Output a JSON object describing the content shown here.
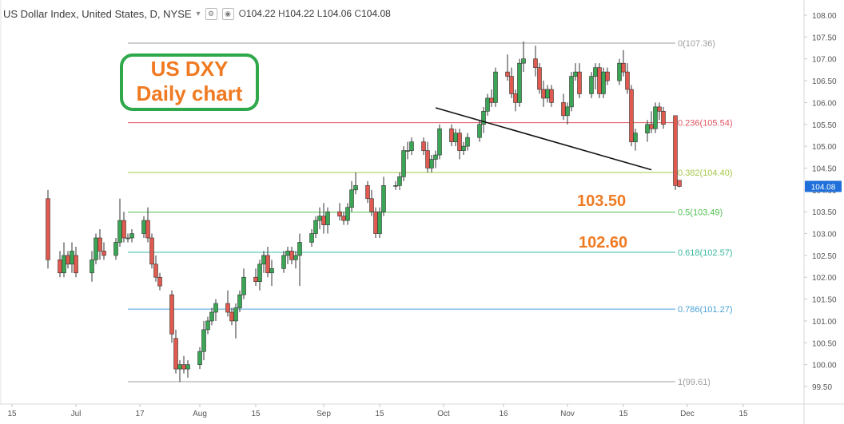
{
  "header": {
    "title": "US Dollar Index, United States, D, NYSE",
    "ohlc": {
      "o_label": "O",
      "o": "104.22",
      "h_label": "H",
      "h": "104.22",
      "l_label": "L",
      "l": "104.06",
      "c_label": "C",
      "c": "104.08"
    }
  },
  "annotation": {
    "line1": "US DXY",
    "line2": "Daily chart"
  },
  "targets": [
    "103.50",
    "102.60"
  ],
  "chart_data": {
    "type": "candlestick",
    "x_axis_labels": [
      "15",
      "Jul",
      "17",
      "Aug",
      "15",
      "Sep",
      "15",
      "Oct",
      "16",
      "Nov",
      "15",
      "Dec",
      "15"
    ],
    "y_ticks": [
      "108.00",
      "107.50",
      "107.00",
      "106.50",
      "106.00",
      "105.50",
      "105.00",
      "104.50",
      "104.00",
      "103.50",
      "103.00",
      "102.50",
      "102.00",
      "101.50",
      "101.00",
      "100.50",
      "100.00",
      "99.50"
    ],
    "ylim": [
      99.35,
      108.2
    ],
    "last_price": "104.08",
    "fibonacci": [
      {
        "label": "0(107.36)",
        "value": 107.36,
        "color": "#9e9e9e"
      },
      {
        "label": "0.236(105.54)",
        "value": 105.54,
        "color": "#e05561"
      },
      {
        "label": "0.382(104.40)",
        "value": 104.4,
        "color": "#a5c94a"
      },
      {
        "label": "0.5(103.49)",
        "value": 103.49,
        "color": "#4fbf4f"
      },
      {
        "label": "0.618(102.57)",
        "value": 102.57,
        "color": "#3bb8a0"
      },
      {
        "label": "0.786(101.27)",
        "value": 101.27,
        "color": "#4ba3d6"
      },
      {
        "label": "1(99.61)",
        "value": 99.61,
        "color": "#9e9e9e"
      }
    ],
    "trendline": {
      "from_date": "2016-09-29",
      "from_value": 105.88,
      "to_date": "2016-11-22",
      "to_value": 104.46
    },
    "candles": [
      {
        "date": "2016-06-24",
        "o": 103.8,
        "h": 104.0,
        "l": 102.2,
        "c": 102.4
      },
      {
        "date": "2016-06-27",
        "o": 102.4,
        "h": 102.6,
        "l": 102.0,
        "c": 102.1
      },
      {
        "date": "2016-06-28",
        "o": 102.1,
        "h": 102.8,
        "l": 102.0,
        "c": 102.5
      },
      {
        "date": "2016-06-29",
        "o": 102.5,
        "h": 102.6,
        "l": 102.2,
        "c": 102.3
      },
      {
        "date": "2016-06-30",
        "o": 102.3,
        "h": 102.8,
        "l": 102.1,
        "c": 102.6
      },
      {
        "date": "2016-07-01",
        "o": 102.5,
        "h": 102.7,
        "l": 102.0,
        "c": 102.1
      },
      {
        "date": "2016-07-05",
        "o": 102.1,
        "h": 102.6,
        "l": 101.9,
        "c": 102.4
      },
      {
        "date": "2016-07-06",
        "o": 102.4,
        "h": 103.0,
        "l": 102.3,
        "c": 102.9
      },
      {
        "date": "2016-07-07",
        "o": 102.9,
        "h": 103.1,
        "l": 102.4,
        "c": 102.6
      },
      {
        "date": "2016-07-08",
        "o": 102.6,
        "h": 102.8,
        "l": 102.4,
        "c": 102.5
      },
      {
        "date": "2016-07-11",
        "o": 102.5,
        "h": 102.9,
        "l": 102.4,
        "c": 102.8
      },
      {
        "date": "2016-07-12",
        "o": 102.8,
        "h": 103.8,
        "l": 102.7,
        "c": 103.3
      },
      {
        "date": "2016-07-13",
        "o": 103.3,
        "h": 103.5,
        "l": 102.8,
        "c": 102.9
      },
      {
        "date": "2016-07-14",
        "o": 102.9,
        "h": 103.0,
        "l": 102.8,
        "c": 102.9
      },
      {
        "date": "2016-07-15",
        "o": 102.9,
        "h": 103.1,
        "l": 102.8,
        "c": 103.0
      },
      {
        "date": "2016-07-18",
        "o": 103.0,
        "h": 103.4,
        "l": 102.9,
        "c": 103.3
      },
      {
        "date": "2016-07-19",
        "o": 103.3,
        "h": 103.6,
        "l": 102.8,
        "c": 102.9
      },
      {
        "date": "2016-07-20",
        "o": 102.9,
        "h": 103.0,
        "l": 102.2,
        "c": 102.3
      },
      {
        "date": "2016-07-21",
        "o": 102.3,
        "h": 102.5,
        "l": 101.9,
        "c": 102.0
      },
      {
        "date": "2016-07-22",
        "o": 102.0,
        "h": 102.1,
        "l": 101.7,
        "c": 101.8
      },
      {
        "date": "2016-07-25",
        "o": 101.6,
        "h": 101.7,
        "l": 100.5,
        "c": 100.7
      },
      {
        "date": "2016-07-26",
        "o": 100.6,
        "h": 100.8,
        "l": 99.8,
        "c": 99.9
      },
      {
        "date": "2016-07-27",
        "o": 99.9,
        "h": 100.1,
        "l": 99.6,
        "c": 100.0
      },
      {
        "date": "2016-07-28",
        "o": 100.0,
        "h": 100.2,
        "l": 99.8,
        "c": 99.9
      },
      {
        "date": "2016-07-29",
        "o": 99.9,
        "h": 100.1,
        "l": 99.7,
        "c": 100.0
      },
      {
        "date": "2016-08-01",
        "o": 100.0,
        "h": 100.4,
        "l": 99.9,
        "c": 100.3
      },
      {
        "date": "2016-08-02",
        "o": 100.3,
        "h": 101.0,
        "l": 100.1,
        "c": 100.8
      },
      {
        "date": "2016-08-03",
        "o": 100.8,
        "h": 101.1,
        "l": 100.7,
        "c": 101.0
      },
      {
        "date": "2016-08-04",
        "o": 101.0,
        "h": 101.3,
        "l": 100.9,
        "c": 101.2
      },
      {
        "date": "2016-08-05",
        "o": 101.2,
        "h": 101.5,
        "l": 101.0,
        "c": 101.4
      },
      {
        "date": "2016-08-08",
        "o": 101.4,
        "h": 101.7,
        "l": 101.1,
        "c": 101.2
      },
      {
        "date": "2016-08-09",
        "o": 101.2,
        "h": 101.3,
        "l": 100.9,
        "c": 101.0
      },
      {
        "date": "2016-08-10",
        "o": 101.0,
        "h": 101.4,
        "l": 100.6,
        "c": 101.3
      },
      {
        "date": "2016-08-11",
        "o": 101.3,
        "h": 101.7,
        "l": 101.2,
        "c": 101.6
      },
      {
        "date": "2016-08-12",
        "o": 101.6,
        "h": 102.2,
        "l": 101.5,
        "c": 102.0
      },
      {
        "date": "2016-08-15",
        "o": 102.0,
        "h": 102.2,
        "l": 101.8,
        "c": 101.9
      },
      {
        "date": "2016-08-16",
        "o": 101.9,
        "h": 102.4,
        "l": 101.7,
        "c": 102.3
      },
      {
        "date": "2016-08-17",
        "o": 102.3,
        "h": 102.6,
        "l": 102.1,
        "c": 102.5
      },
      {
        "date": "2016-08-18",
        "o": 102.5,
        "h": 102.7,
        "l": 102.0,
        "c": 102.1
      },
      {
        "date": "2016-08-19",
        "o": 102.1,
        "h": 102.4,
        "l": 101.8,
        "c": 102.2
      },
      {
        "date": "2016-08-22",
        "o": 102.2,
        "h": 102.6,
        "l": 102.1,
        "c": 102.5
      },
      {
        "date": "2016-08-23",
        "o": 102.5,
        "h": 102.7,
        "l": 102.3,
        "c": 102.6
      },
      {
        "date": "2016-08-24",
        "o": 102.6,
        "h": 102.7,
        "l": 102.3,
        "c": 102.4
      },
      {
        "date": "2016-08-25",
        "o": 102.4,
        "h": 102.6,
        "l": 102.2,
        "c": 102.5
      },
      {
        "date": "2016-08-26",
        "o": 102.5,
        "h": 103.0,
        "l": 101.8,
        "c": 102.8
      },
      {
        "date": "2016-08-29",
        "o": 102.8,
        "h": 103.1,
        "l": 102.7,
        "c": 103.0
      },
      {
        "date": "2016-08-30",
        "o": 103.0,
        "h": 103.4,
        "l": 102.9,
        "c": 103.3
      },
      {
        "date": "2016-08-31",
        "o": 103.3,
        "h": 103.6,
        "l": 103.1,
        "c": 103.4
      },
      {
        "date": "2016-09-01",
        "o": 103.4,
        "h": 103.7,
        "l": 103.0,
        "c": 103.2
      },
      {
        "date": "2016-09-02",
        "o": 103.2,
        "h": 103.6,
        "l": 103.0,
        "c": 103.5
      },
      {
        "date": "2016-09-05",
        "o": 103.5,
        "h": 103.7,
        "l": 103.3,
        "c": 103.4
      },
      {
        "date": "2016-09-06",
        "o": 103.4,
        "h": 103.5,
        "l": 103.2,
        "c": 103.3
      },
      {
        "date": "2016-09-07",
        "o": 103.3,
        "h": 103.7,
        "l": 103.2,
        "c": 103.6
      },
      {
        "date": "2016-09-08",
        "o": 103.6,
        "h": 104.2,
        "l": 103.5,
        "c": 104.0
      },
      {
        "date": "2016-09-09",
        "o": 104.0,
        "h": 104.4,
        "l": 103.9,
        "c": 104.1
      },
      {
        "date": "2016-09-12",
        "o": 104.1,
        "h": 104.2,
        "l": 103.7,
        "c": 103.8
      },
      {
        "date": "2016-09-13",
        "o": 103.8,
        "h": 104.0,
        "l": 103.4,
        "c": 103.5
      },
      {
        "date": "2016-09-14",
        "o": 103.5,
        "h": 103.6,
        "l": 102.9,
        "c": 103.0
      },
      {
        "date": "2016-09-15",
        "o": 103.0,
        "h": 103.6,
        "l": 102.9,
        "c": 103.5
      },
      {
        "date": "2016-09-16",
        "o": 103.5,
        "h": 104.3,
        "l": 103.4,
        "c": 104.1
      },
      {
        "date": "2016-09-19",
        "o": 104.1,
        "h": 104.2,
        "l": 104.0,
        "c": 104.1
      },
      {
        "date": "2016-09-20",
        "o": 104.1,
        "h": 104.4,
        "l": 104.0,
        "c": 104.3
      },
      {
        "date": "2016-09-21",
        "o": 104.3,
        "h": 105.0,
        "l": 104.2,
        "c": 104.9
      },
      {
        "date": "2016-09-22",
        "o": 104.9,
        "h": 105.1,
        "l": 104.7,
        "c": 104.9
      },
      {
        "date": "2016-09-23",
        "o": 104.9,
        "h": 105.2,
        "l": 104.8,
        "c": 105.1
      },
      {
        "date": "2016-09-26",
        "o": 105.1,
        "h": 105.2,
        "l": 104.8,
        "c": 104.9
      },
      {
        "date": "2016-09-27",
        "o": 104.9,
        "h": 105.1,
        "l": 104.4,
        "c": 104.5
      },
      {
        "date": "2016-09-28",
        "o": 104.5,
        "h": 104.8,
        "l": 104.4,
        "c": 104.7
      },
      {
        "date": "2016-09-29",
        "o": 104.7,
        "h": 104.9,
        "l": 104.5,
        "c": 104.8
      },
      {
        "date": "2016-09-30",
        "o": 104.8,
        "h": 105.5,
        "l": 104.7,
        "c": 105.4
      },
      {
        "date": "2016-10-03",
        "o": 105.4,
        "h": 105.5,
        "l": 105.0,
        "c": 105.1
      },
      {
        "date": "2016-10-04",
        "o": 105.1,
        "h": 105.4,
        "l": 105.0,
        "c": 105.3
      },
      {
        "date": "2016-10-05",
        "o": 105.3,
        "h": 105.4,
        "l": 104.7,
        "c": 104.9
      },
      {
        "date": "2016-10-06",
        "o": 104.9,
        "h": 105.1,
        "l": 104.8,
        "c": 105.0
      },
      {
        "date": "2016-10-07",
        "o": 105.0,
        "h": 105.3,
        "l": 104.9,
        "c": 105.2
      },
      {
        "date": "2016-10-10",
        "o": 105.2,
        "h": 105.6,
        "l": 105.1,
        "c": 105.5
      },
      {
        "date": "2016-10-11",
        "o": 105.5,
        "h": 105.9,
        "l": 105.3,
        "c": 105.8
      },
      {
        "date": "2016-10-12",
        "o": 105.8,
        "h": 106.2,
        "l": 105.7,
        "c": 106.1
      },
      {
        "date": "2016-10-13",
        "o": 106.1,
        "h": 106.3,
        "l": 105.9,
        "c": 106.0
      },
      {
        "date": "2016-10-14",
        "o": 106.0,
        "h": 106.8,
        "l": 105.9,
        "c": 106.7
      },
      {
        "date": "2016-10-17",
        "o": 106.7,
        "h": 107.1,
        "l": 106.5,
        "c": 106.6
      },
      {
        "date": "2016-10-18",
        "o": 106.6,
        "h": 106.8,
        "l": 106.1,
        "c": 106.2
      },
      {
        "date": "2016-10-19",
        "o": 106.2,
        "h": 106.3,
        "l": 105.8,
        "c": 106.0
      },
      {
        "date": "2016-10-20",
        "o": 106.0,
        "h": 107.0,
        "l": 105.9,
        "c": 106.9
      },
      {
        "date": "2016-10-21",
        "o": 106.9,
        "h": 107.4,
        "l": 106.7,
        "c": 107.0
      },
      {
        "date": "2016-10-24",
        "o": 107.0,
        "h": 107.3,
        "l": 106.6,
        "c": 106.8
      },
      {
        "date": "2016-10-25",
        "o": 106.8,
        "h": 106.9,
        "l": 106.2,
        "c": 106.3
      },
      {
        "date": "2016-10-26",
        "o": 106.3,
        "h": 106.5,
        "l": 105.9,
        "c": 106.1
      },
      {
        "date": "2016-10-27",
        "o": 106.1,
        "h": 106.4,
        "l": 106.0,
        "c": 106.3
      },
      {
        "date": "2016-10-28",
        "o": 106.3,
        "h": 106.4,
        "l": 105.9,
        "c": 106.0
      },
      {
        "date": "2016-10-31",
        "o": 106.0,
        "h": 106.2,
        "l": 105.6,
        "c": 105.7
      },
      {
        "date": "2016-11-01",
        "o": 105.7,
        "h": 106.0,
        "l": 105.5,
        "c": 105.9
      },
      {
        "date": "2016-11-02",
        "o": 105.9,
        "h": 106.7,
        "l": 105.8,
        "c": 106.6
      },
      {
        "date": "2016-11-03",
        "o": 106.6,
        "h": 106.9,
        "l": 106.5,
        "c": 106.7
      },
      {
        "date": "2016-11-04",
        "o": 106.7,
        "h": 106.9,
        "l": 106.1,
        "c": 106.2
      },
      {
        "date": "2016-11-07",
        "o": 106.2,
        "h": 106.7,
        "l": 106.1,
        "c": 106.6
      },
      {
        "date": "2016-11-08",
        "o": 106.6,
        "h": 106.9,
        "l": 106.3,
        "c": 106.8
      },
      {
        "date": "2016-11-09",
        "o": 106.8,
        "h": 106.9,
        "l": 106.1,
        "c": 106.2
      },
      {
        "date": "2016-11-10",
        "o": 106.2,
        "h": 106.8,
        "l": 106.1,
        "c": 106.7
      },
      {
        "date": "2016-11-11",
        "o": 106.7,
        "h": 106.8,
        "l": 106.4,
        "c": 106.5
      },
      {
        "date": "2016-11-14",
        "o": 106.5,
        "h": 107.0,
        "l": 106.4,
        "c": 106.9
      },
      {
        "date": "2016-11-15",
        "o": 106.9,
        "h": 107.2,
        "l": 106.6,
        "c": 106.7
      },
      {
        "date": "2016-11-16",
        "o": 106.7,
        "h": 106.9,
        "l": 106.2,
        "c": 106.3
      },
      {
        "date": "2016-11-17",
        "o": 106.3,
        "h": 106.4,
        "l": 105.0,
        "c": 105.1
      },
      {
        "date": "2016-11-18",
        "o": 105.1,
        "h": 105.4,
        "l": 104.9,
        "c": 105.3
      },
      {
        "date": "2016-11-21",
        "o": 105.3,
        "h": 105.6,
        "l": 105.1,
        "c": 105.5
      },
      {
        "date": "2016-11-22",
        "o": 105.5,
        "h": 105.8,
        "l": 105.3,
        "c": 105.4
      },
      {
        "date": "2016-11-23",
        "o": 105.4,
        "h": 106.0,
        "l": 105.3,
        "c": 105.9
      },
      {
        "date": "2016-11-24",
        "o": 105.9,
        "h": 106.0,
        "l": 105.6,
        "c": 105.8
      },
      {
        "date": "2016-11-25",
        "o": 105.8,
        "h": 105.9,
        "l": 105.4,
        "c": 105.5
      },
      {
        "date": "2016-11-28",
        "o": 105.7,
        "h": 105.7,
        "l": 104.0,
        "c": 104.1
      },
      {
        "date": "2016-11-29",
        "o": 104.22,
        "h": 104.22,
        "l": 104.06,
        "c": 104.08
      }
    ]
  }
}
